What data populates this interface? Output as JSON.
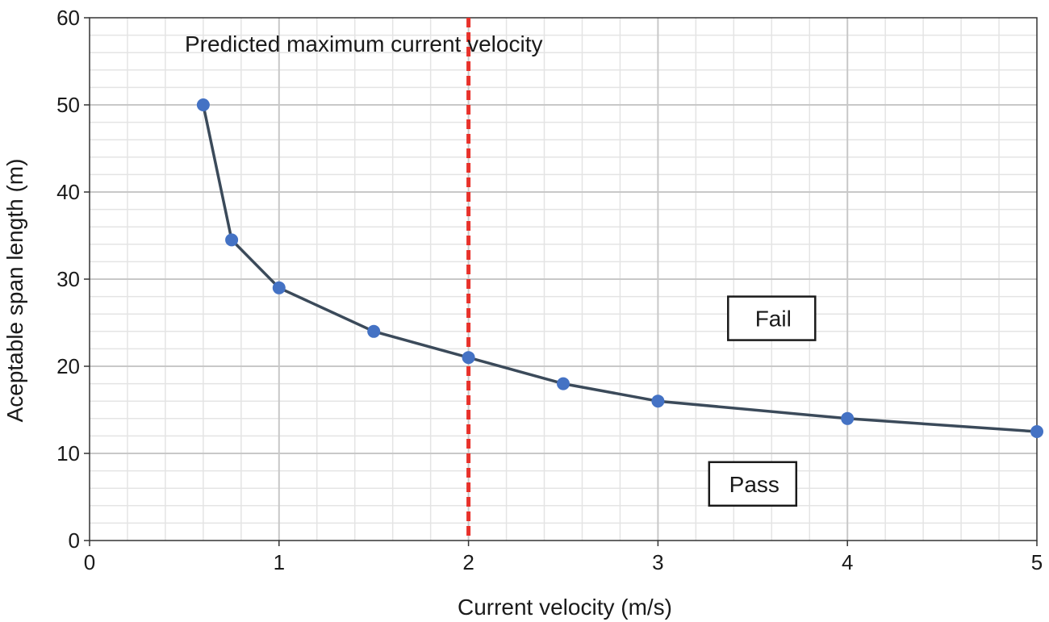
{
  "chart_data": {
    "type": "line",
    "title": "",
    "xlabel": "Current velocity (m/s)",
    "ylabel": "Aceptable span length (m)",
    "xlim": [
      0,
      5
    ],
    "ylim": [
      0,
      60
    ],
    "x_ticks": [
      "0",
      "1",
      "2",
      "3",
      "4",
      "5"
    ],
    "y_ticks": [
      "0",
      "10",
      "20",
      "30",
      "40",
      "50",
      "60"
    ],
    "grid": true,
    "series": [
      {
        "color": "#4472c4",
        "line_color": "#3b4a5a",
        "x": [
          0.6,
          0.75,
          1.0,
          1.5,
          2.0,
          2.5,
          3.0,
          4.0,
          5.0
        ],
        "y": [
          50,
          34.5,
          29,
          24,
          21,
          18,
          16,
          14,
          12.5
        ]
      }
    ],
    "reference_line": {
      "x": 2,
      "color": "#e8312a",
      "style": "dashed",
      "label": "Predicted maximum current velocity"
    },
    "region_labels": [
      {
        "text": "Fail",
        "x": 3.6,
        "y": 25.5
      },
      {
        "text": "Pass",
        "x": 3.5,
        "y": 6.5
      }
    ]
  }
}
